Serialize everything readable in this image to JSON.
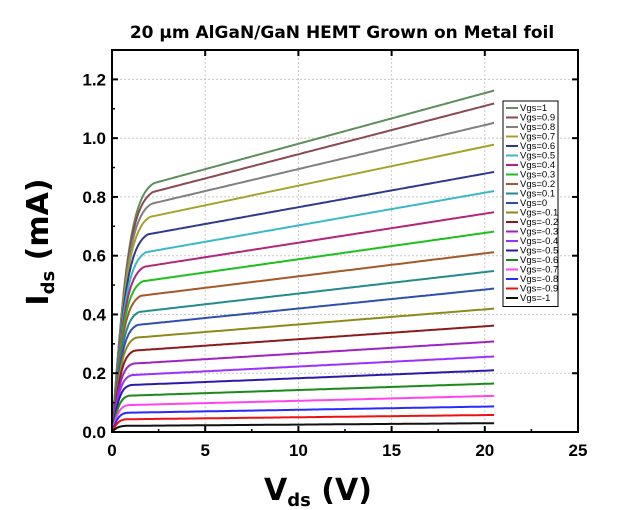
{
  "chart_data": {
    "type": "line",
    "title": "20 µm AlGaN/GaN HEMT Grown on Metal foil",
    "xlabel": {
      "main": "V",
      "sub": "ds",
      "unit": " (V)"
    },
    "ylabel": {
      "main": "I",
      "sub": "ds",
      "unit": " (mA)"
    },
    "xlim": [
      0,
      25
    ],
    "ylim": [
      0,
      1.3
    ],
    "xticks": [
      0,
      5,
      10,
      15,
      20,
      25
    ],
    "yticks": [
      0.0,
      0.2,
      0.4,
      0.6,
      0.8,
      1.0,
      1.2
    ],
    "ytick_labels": [
      "0.0",
      "0.2",
      "0.4",
      "0.6",
      "0.8",
      "1.0",
      "1.2"
    ],
    "grid": true,
    "legend_position": "right",
    "x_max_data": 20.5,
    "series": [
      {
        "name": "Vgs=1",
        "color": "#5d8e5b",
        "sat": 0.86,
        "end": 1.162
      },
      {
        "name": "Vgs=0.9",
        "color": "#8b4a52",
        "sat": 0.83,
        "end": 1.118
      },
      {
        "name": "Vgs=0.8",
        "color": "#808080",
        "sat": 0.79,
        "end": 1.052
      },
      {
        "name": "Vgs=0.7",
        "color": "#a5a22a",
        "sat": 0.745,
        "end": 0.978
      },
      {
        "name": "Vgs=0.6",
        "color": "#2e3a8f",
        "sat": 0.685,
        "end": 0.885
      },
      {
        "name": "Vgs=0.5",
        "color": "#3bb8c6",
        "sat": 0.625,
        "end": 0.82
      },
      {
        "name": "Vgs=0.4",
        "color": "#b2257a",
        "sat": 0.575,
        "end": 0.748
      },
      {
        "name": "Vgs=0.3",
        "color": "#1cc01c",
        "sat": 0.525,
        "end": 0.682
      },
      {
        "name": "Vgs=0.2",
        "color": "#a5592a",
        "sat": 0.475,
        "end": 0.612
      },
      {
        "name": "Vgs=0.1",
        "color": "#248a8e",
        "sat": 0.42,
        "end": 0.548
      },
      {
        "name": "Vgs=0",
        "color": "#2e4fb0",
        "sat": 0.375,
        "end": 0.488
      },
      {
        "name": "Vgs=-0.1",
        "color": "#8e8a1a",
        "sat": 0.33,
        "end": 0.42
      },
      {
        "name": "Vgs=-0.2",
        "color": "#8b1a1a",
        "sat": 0.285,
        "end": 0.362
      },
      {
        "name": "Vgs=-0.3",
        "color": "#a020c0",
        "sat": 0.24,
        "end": 0.308
      },
      {
        "name": "Vgs=-0.4",
        "color": "#9a30ff",
        "sat": 0.2,
        "end": 0.257
      },
      {
        "name": "Vgs=-0.5",
        "color": "#2b1aa8",
        "sat": 0.165,
        "end": 0.21
      },
      {
        "name": "Vgs=-0.6",
        "color": "#1a8a1a",
        "sat": 0.128,
        "end": 0.165
      },
      {
        "name": "Vgs=-0.7",
        "color": "#ff44ee",
        "sat": 0.095,
        "end": 0.123
      },
      {
        "name": "Vgs=-0.8",
        "color": "#2a2aff",
        "sat": 0.068,
        "end": 0.087
      },
      {
        "name": "Vgs=-0.9",
        "color": "#ee1111",
        "sat": 0.045,
        "end": 0.058
      },
      {
        "name": "Vgs=-1",
        "color": "#111111",
        "sat": 0.022,
        "end": 0.03
      }
    ]
  }
}
